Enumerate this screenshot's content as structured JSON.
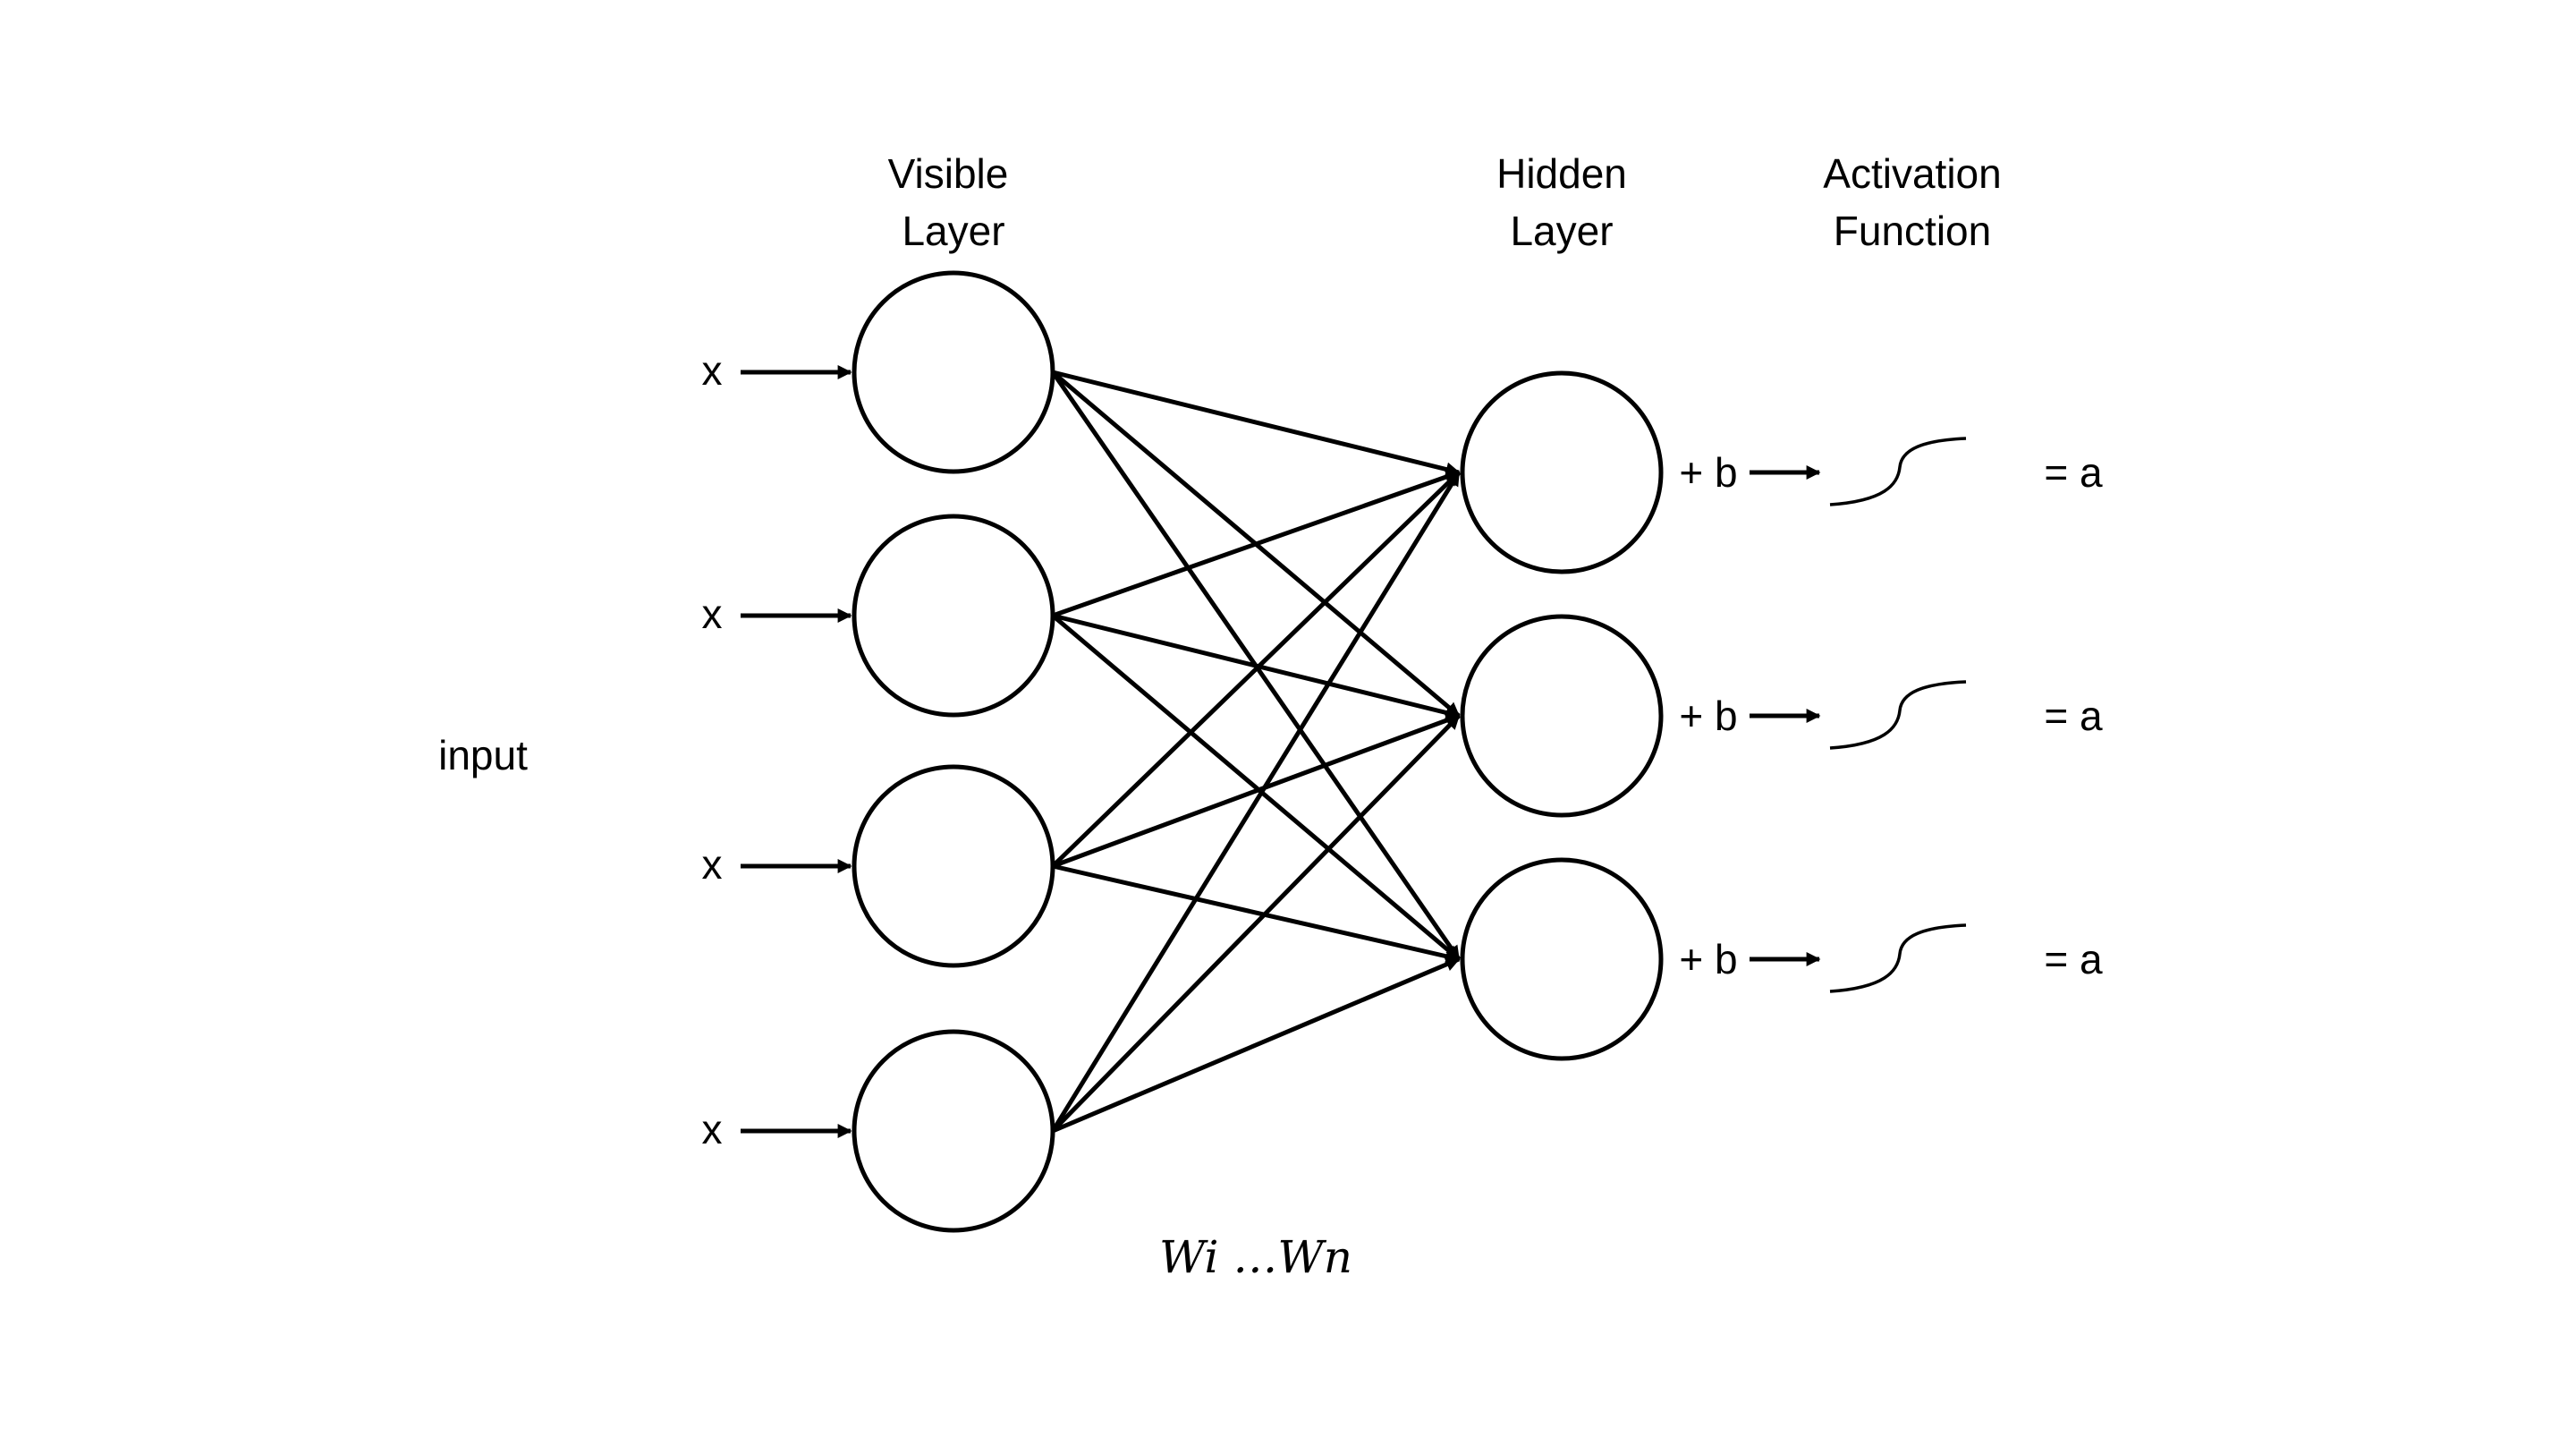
{
  "diagram": {
    "labels": {
      "visible_layer": [
        "Visible",
        "Layer"
      ],
      "hidden_layer": [
        "Hidden",
        "Layer"
      ],
      "activation_function": [
        "Activation",
        "Function"
      ],
      "input": "input",
      "weights": "Wi …Wn"
    },
    "visible_nodes": [
      {
        "input_label": "x"
      },
      {
        "input_label": "x"
      },
      {
        "input_label": "x"
      },
      {
        "input_label": "x"
      }
    ],
    "hidden_nodes": [
      {
        "bias_label": "+ b",
        "output_label": "= a"
      },
      {
        "bias_label": "+ b",
        "output_label": "= a"
      },
      {
        "bias_label": "+ b",
        "output_label": "= a"
      }
    ],
    "connections": "fully-connected"
  }
}
